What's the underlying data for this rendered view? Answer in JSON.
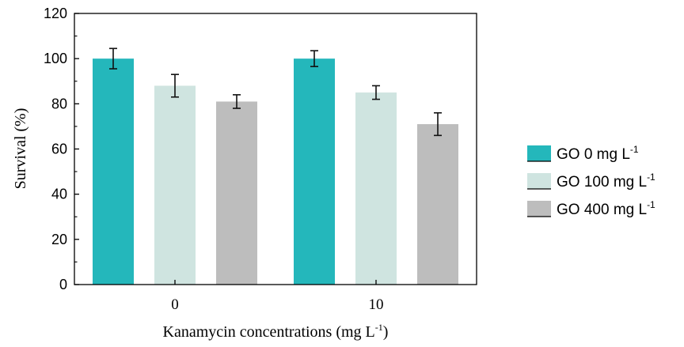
{
  "chart_data": {
    "type": "bar",
    "categories": [
      "0",
      "10"
    ],
    "series": [
      {
        "name": "GO 0 mg L",
        "name_sup": "-1",
        "color": "#24b7bb",
        "values": [
          100,
          100
        ],
        "errors": [
          4.5,
          3.5
        ]
      },
      {
        "name": "GO 100 mg L",
        "name_sup": "-1",
        "color": "#cfe4e0",
        "values": [
          88,
          85
        ],
        "errors": [
          5,
          3
        ]
      },
      {
        "name": "GO 400 mg L",
        "name_sup": "-1",
        "color": "#bdbdbd",
        "values": [
          81,
          71
        ],
        "errors": [
          3,
          5
        ]
      }
    ],
    "xlabel": "Kanamycin concentrations (mg L",
    "xlabel_sup": "-1",
    "xlabel_end": ")",
    "ylabel": "Survival (%)",
    "ylim": [
      0,
      120
    ],
    "yticks": [
      "0",
      "20",
      "40",
      "60",
      "80",
      "100",
      "120"
    ],
    "legend_position": "right",
    "grid": false
  }
}
